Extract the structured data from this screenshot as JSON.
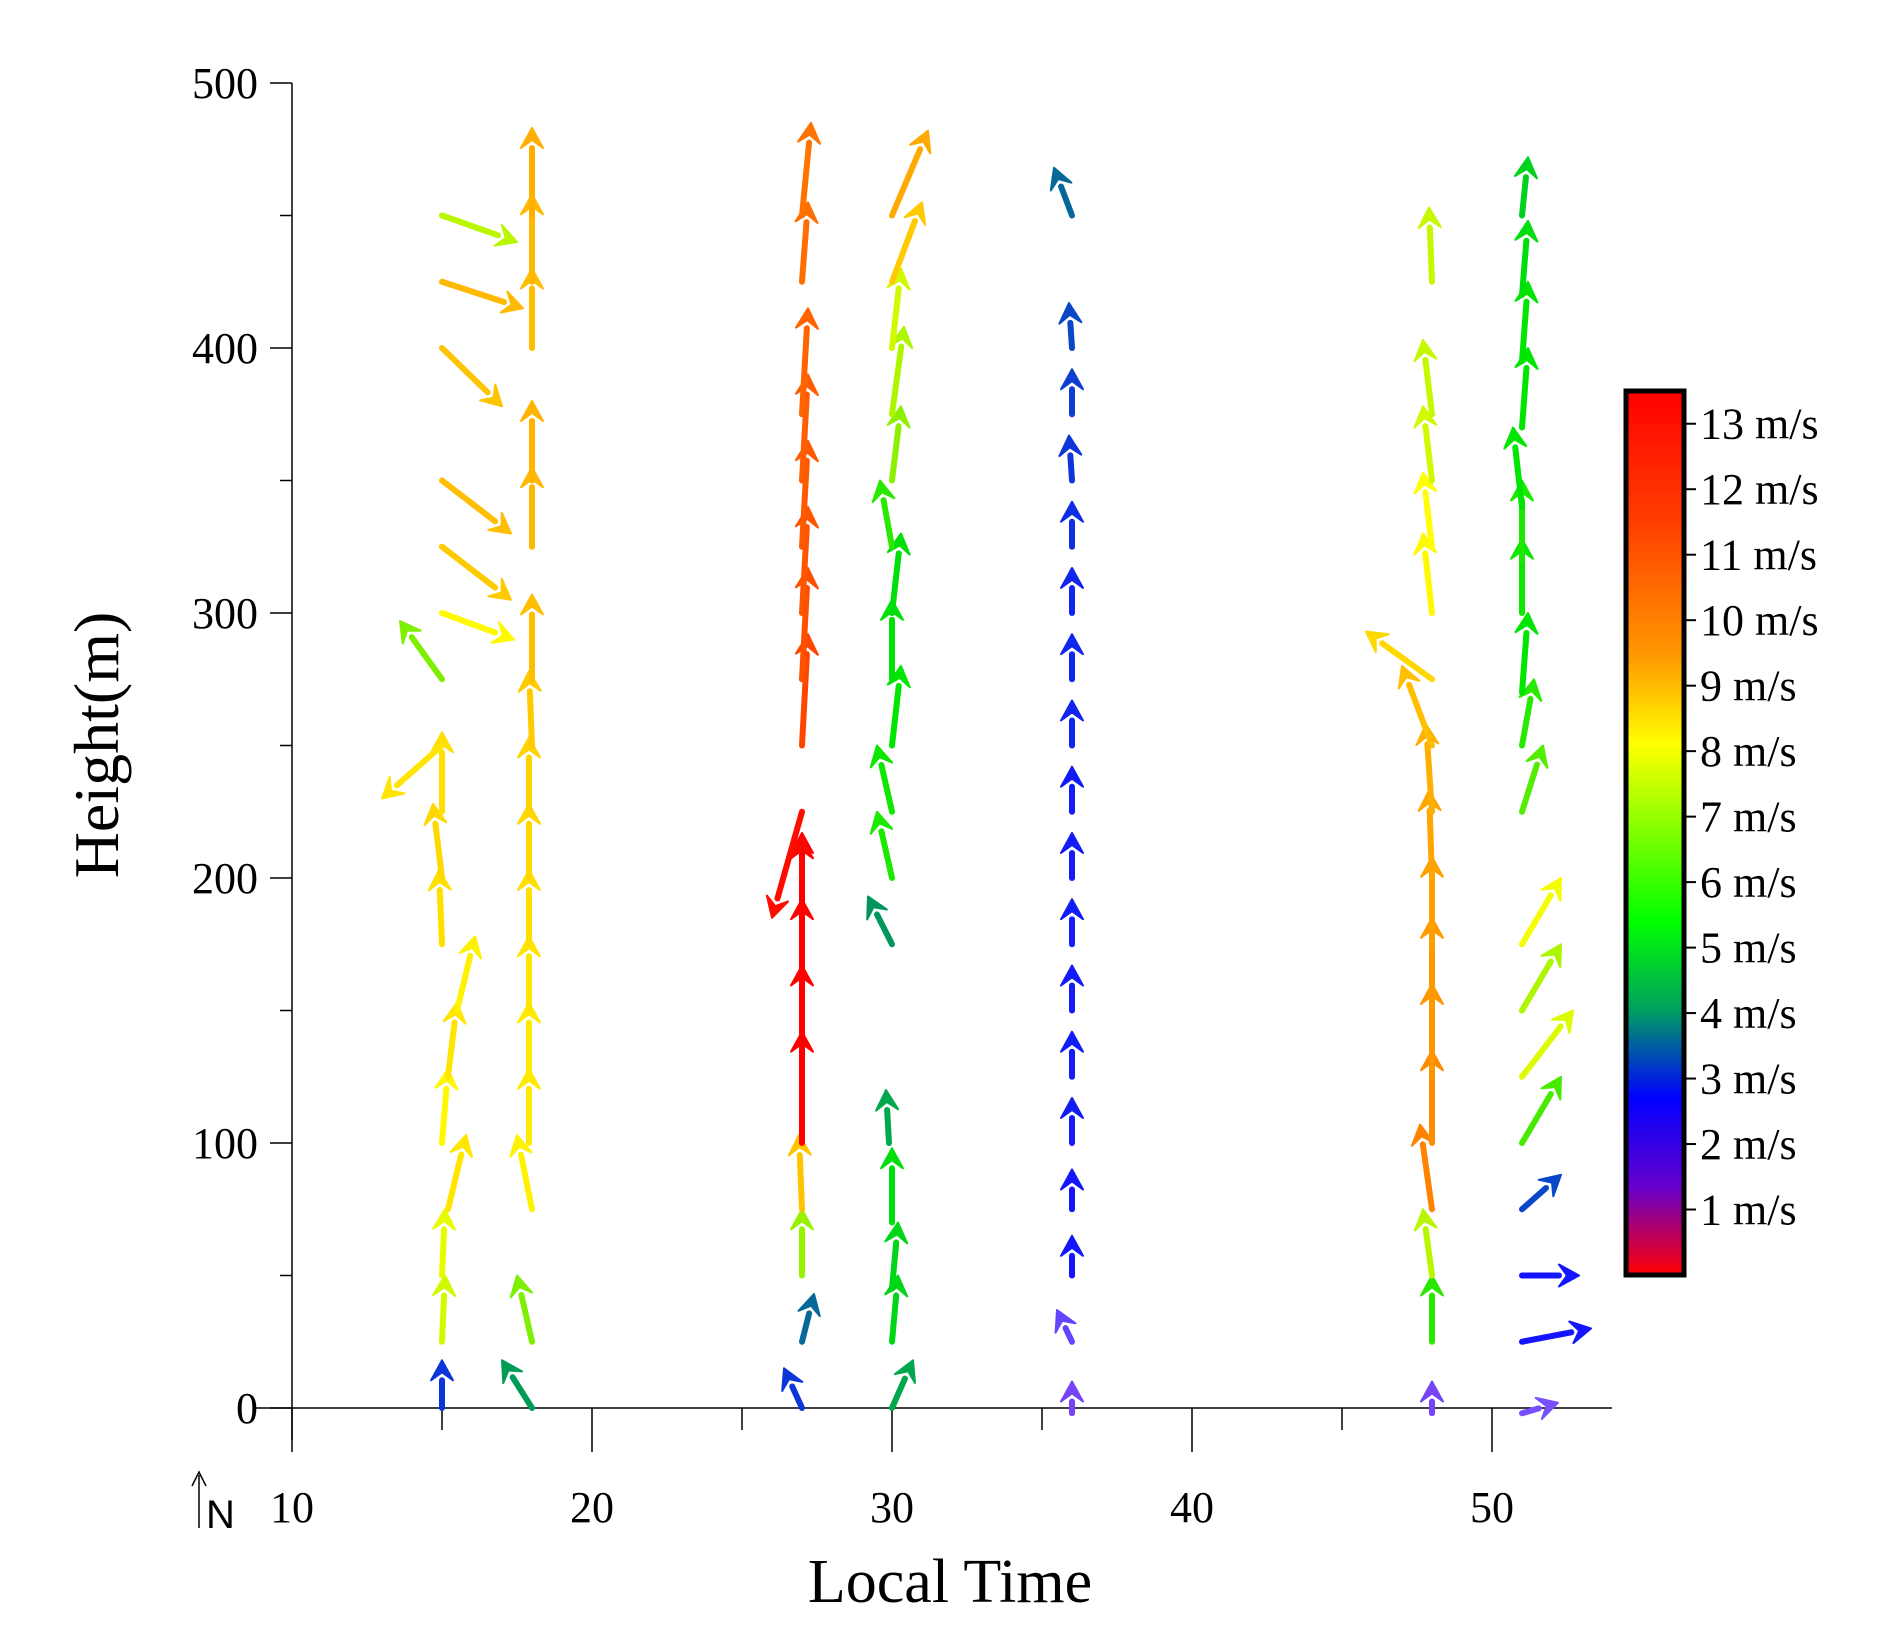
{
  "chart_data": {
    "type": "vector",
    "xlabel": "Local Time",
    "ylabel": "Height(m)",
    "xlim": [
      10,
      54
    ],
    "ylim": [
      -15,
      500
    ],
    "xticks": [
      10,
      20,
      30,
      40,
      50
    ],
    "yticks": [
      0,
      100,
      200,
      300,
      400,
      500
    ],
    "north_indicator": "N",
    "colorbar": {
      "labels": [
        "13 m/s",
        "12 m/s",
        "11 m/s",
        "10 m/s",
        "9 m/s",
        "8 m/s",
        "7 m/s",
        "6 m/s",
        "5 m/s",
        "4 m/s",
        "3 m/s",
        "2 m/s",
        "1 m/s"
      ],
      "min": 0,
      "max": 13.5
    },
    "vectors": [
      {
        "x": 15.0,
        "h": 0,
        "dx": 0.0,
        "dh": 18,
        "speed": 3.4
      },
      {
        "x": 15.0,
        "h": 25,
        "dx": 0.1,
        "dh": 25,
        "speed": 7.6
      },
      {
        "x": 15.0,
        "h": 50,
        "dx": 0.1,
        "dh": 25,
        "speed": 7.8
      },
      {
        "x": 15.2,
        "h": 75,
        "dx": 0.6,
        "dh": 28,
        "speed": 8.4
      },
      {
        "x": 15.0,
        "h": 100,
        "dx": 0.2,
        "dh": 28,
        "speed": 8.1
      },
      {
        "x": 15.2,
        "h": 125,
        "dx": 0.3,
        "dh": 28,
        "speed": 8.4
      },
      {
        "x": 15.5,
        "h": 150,
        "dx": 0.6,
        "dh": 28,
        "speed": 8.2
      },
      {
        "x": 15.0,
        "h": 175,
        "dx": -0.1,
        "dh": 28,
        "speed": 8.5
      },
      {
        "x": 15.0,
        "h": 200,
        "dx": -0.3,
        "dh": 28,
        "speed": 8.6
      },
      {
        "x": 15.0,
        "h": 225,
        "dx": 0.0,
        "dh": 30,
        "speed": 8.5
      },
      {
        "x": 15.0,
        "h": 250,
        "dx": -2.0,
        "dh": -20,
        "speed": 8.4
      },
      {
        "x": 15.0,
        "h": 275,
        "dx": -1.4,
        "dh": 22,
        "speed": 6.9
      },
      {
        "x": 15.0,
        "h": 300,
        "dx": 2.4,
        "dh": -10,
        "speed": 8.1
      },
      {
        "x": 15.0,
        "h": 325,
        "dx": 2.3,
        "dh": -20,
        "speed": 8.8
      },
      {
        "x": 15.0,
        "h": 350,
        "dx": 2.3,
        "dh": -20,
        "speed": 9.0
      },
      {
        "x": 15.0,
        "h": 400,
        "dx": 2.0,
        "dh": -22,
        "speed": 8.9
      },
      {
        "x": 15.0,
        "h": 425,
        "dx": 2.7,
        "dh": -10,
        "speed": 9.1
      },
      {
        "x": 15.0,
        "h": 450,
        "dx": 2.5,
        "dh": -10,
        "speed": 7.4
      },
      {
        "x": 18.0,
        "h": 0,
        "dx": -1.0,
        "dh": 18,
        "speed": 4.4
      },
      {
        "x": 18.0,
        "h": 25,
        "dx": -0.5,
        "dh": 25,
        "speed": 6.9
      },
      {
        "x": 18.0,
        "h": 75,
        "dx": -0.5,
        "dh": 28,
        "speed": 8.2
      },
      {
        "x": 17.9,
        "h": 100,
        "dx": 0.0,
        "dh": 28,
        "speed": 8.3
      },
      {
        "x": 17.9,
        "h": 125,
        "dx": 0.0,
        "dh": 28,
        "speed": 8.3
      },
      {
        "x": 17.9,
        "h": 150,
        "dx": 0.0,
        "dh": 28,
        "speed": 8.4
      },
      {
        "x": 17.9,
        "h": 175,
        "dx": 0.0,
        "dh": 28,
        "speed": 8.5
      },
      {
        "x": 17.9,
        "h": 200,
        "dx": 0.0,
        "dh": 28,
        "speed": 8.6
      },
      {
        "x": 17.9,
        "h": 225,
        "dx": 0.0,
        "dh": 28,
        "speed": 8.7
      },
      {
        "x": 18.0,
        "h": 250,
        "dx": -0.1,
        "dh": 28,
        "speed": 8.8
      },
      {
        "x": 18.0,
        "h": 275,
        "dx": 0.0,
        "dh": 32,
        "speed": 9.0
      },
      {
        "x": 18.0,
        "h": 325,
        "dx": 0.0,
        "dh": 30,
        "speed": 9.1
      },
      {
        "x": 18.0,
        "h": 350,
        "dx": 0.0,
        "dh": 30,
        "speed": 9.2
      },
      {
        "x": 18.0,
        "h": 400,
        "dx": 0.0,
        "dh": 30,
        "speed": 9.0
      },
      {
        "x": 18.0,
        "h": 425,
        "dx": 0.0,
        "dh": 33,
        "speed": 9.1
      },
      {
        "x": 18.0,
        "h": 450,
        "dx": 0.0,
        "dh": 33,
        "speed": 9.3
      },
      {
        "x": 27.0,
        "h": 0,
        "dx": -0.6,
        "dh": 15,
        "speed": 3.4
      },
      {
        "x": 27.0,
        "h": 25,
        "dx": 0.4,
        "dh": 18,
        "speed": 3.9
      },
      {
        "x": 27.0,
        "h": 50,
        "dx": 0.0,
        "dh": 25,
        "speed": 7.1
      },
      {
        "x": 27.0,
        "h": 75,
        "dx": -0.1,
        "dh": 28,
        "speed": 8.9
      },
      {
        "x": 27.0,
        "h": 100,
        "dx": 0.0,
        "dh": 42,
        "speed": 13.2
      },
      {
        "x": 27.0,
        "h": 125,
        "dx": 0.0,
        "dh": 42,
        "speed": 13.2
      },
      {
        "x": 27.0,
        "h": 150,
        "dx": 0.0,
        "dh": 42,
        "speed": 13.1
      },
      {
        "x": 27.0,
        "h": 175,
        "dx": 0.0,
        "dh": 42,
        "speed": 13.0
      },
      {
        "x": 27.0,
        "h": 200,
        "dx": 0.0,
        "dh": 15,
        "speed": 12.9
      },
      {
        "x": 27.0,
        "h": 225,
        "dx": -1.0,
        "dh": -40,
        "speed": 12.8
      },
      {
        "x": 27.0,
        "h": 250,
        "dx": 0.2,
        "dh": 42,
        "speed": 11.8
      },
      {
        "x": 27.0,
        "h": 275,
        "dx": 0.2,
        "dh": 42,
        "speed": 11.6
      },
      {
        "x": 27.0,
        "h": 300,
        "dx": 0.2,
        "dh": 40,
        "speed": 11.5
      },
      {
        "x": 27.0,
        "h": 325,
        "dx": 0.2,
        "dh": 40,
        "speed": 11.4
      },
      {
        "x": 27.0,
        "h": 350,
        "dx": 0.2,
        "dh": 40,
        "speed": 11.3
      },
      {
        "x": 27.0,
        "h": 375,
        "dx": 0.2,
        "dh": 40,
        "speed": 11.2
      },
      {
        "x": 27.0,
        "h": 425,
        "dx": 0.2,
        "dh": 30,
        "speed": 11.0
      },
      {
        "x": 27.0,
        "h": 450,
        "dx": 0.3,
        "dh": 35,
        "speed": 10.8
      },
      {
        "x": 30.0,
        "h": 0,
        "dx": 0.7,
        "dh": 18,
        "speed": 4.6
      },
      {
        "x": 30.0,
        "h": 25,
        "dx": 0.2,
        "dh": 25,
        "speed": 5.6
      },
      {
        "x": 30.0,
        "h": 45,
        "dx": 0.2,
        "dh": 25,
        "speed": 5.6
      },
      {
        "x": 30.0,
        "h": 70,
        "dx": 0.0,
        "dh": 28,
        "speed": 5.8
      },
      {
        "x": 29.9,
        "h": 100,
        "dx": -0.1,
        "dh": 20,
        "speed": 4.6
      },
      {
        "x": 30.0,
        "h": 175,
        "dx": -0.8,
        "dh": 18,
        "speed": 4.3
      },
      {
        "x": 30.0,
        "h": 200,
        "dx": -0.5,
        "dh": 25,
        "speed": 6.2
      },
      {
        "x": 30.0,
        "h": 225,
        "dx": -0.5,
        "dh": 25,
        "speed": 6.1
      },
      {
        "x": 30.0,
        "h": 250,
        "dx": 0.3,
        "dh": 30,
        "speed": 6.0
      },
      {
        "x": 30.0,
        "h": 275,
        "dx": 0.0,
        "dh": 30,
        "speed": 5.9
      },
      {
        "x": 30.0,
        "h": 300,
        "dx": 0.3,
        "dh": 30,
        "speed": 5.8
      },
      {
        "x": 30.0,
        "h": 325,
        "dx": -0.4,
        "dh": 25,
        "speed": 6.3
      },
      {
        "x": 30.0,
        "h": 350,
        "dx": 0.3,
        "dh": 28,
        "speed": 7.0
      },
      {
        "x": 30.0,
        "h": 375,
        "dx": 0.4,
        "dh": 33,
        "speed": 7.3
      },
      {
        "x": 30.0,
        "h": 400,
        "dx": 0.3,
        "dh": 30,
        "speed": 7.6
      },
      {
        "x": 30.0,
        "h": 425,
        "dx": 1.0,
        "dh": 30,
        "speed": 8.8
      },
      {
        "x": 30.0,
        "h": 450,
        "dx": 1.2,
        "dh": 32,
        "speed": 9.4
      },
      {
        "x": 36.0,
        "h": -2,
        "dx": 0.0,
        "dh": 12,
        "speed": 2.3
      },
      {
        "x": 36.0,
        "h": 25,
        "dx": -0.5,
        "dh": 12,
        "speed": 2.6
      },
      {
        "x": 36.0,
        "h": 50,
        "dx": 0.0,
        "dh": 15,
        "speed": 3.0
      },
      {
        "x": 36.0,
        "h": 75,
        "dx": 0.0,
        "dh": 15,
        "speed": 3.0
      },
      {
        "x": 36.0,
        "h": 100,
        "dx": 0.0,
        "dh": 17,
        "speed": 3.1
      },
      {
        "x": 36.0,
        "h": 125,
        "dx": 0.0,
        "dh": 17,
        "speed": 3.1
      },
      {
        "x": 36.0,
        "h": 150,
        "dx": 0.0,
        "dh": 17,
        "speed": 3.1
      },
      {
        "x": 36.0,
        "h": 175,
        "dx": 0.0,
        "dh": 17,
        "speed": 3.1
      },
      {
        "x": 36.0,
        "h": 200,
        "dx": 0.0,
        "dh": 17,
        "speed": 3.1
      },
      {
        "x": 36.0,
        "h": 225,
        "dx": 0.0,
        "dh": 17,
        "speed": 3.1
      },
      {
        "x": 36.0,
        "h": 250,
        "dx": 0.0,
        "dh": 17,
        "speed": 3.2
      },
      {
        "x": 36.0,
        "h": 275,
        "dx": 0.0,
        "dh": 17,
        "speed": 3.2
      },
      {
        "x": 36.0,
        "h": 300,
        "dx": 0.0,
        "dh": 17,
        "speed": 3.2
      },
      {
        "x": 36.0,
        "h": 325,
        "dx": 0.0,
        "dh": 17,
        "speed": 3.3
      },
      {
        "x": 36.0,
        "h": 350,
        "dx": -0.1,
        "dh": 17,
        "speed": 3.4
      },
      {
        "x": 36.0,
        "h": 375,
        "dx": 0.0,
        "dh": 17,
        "speed": 3.5
      },
      {
        "x": 36.0,
        "h": 400,
        "dx": -0.1,
        "dh": 17,
        "speed": 3.6
      },
      {
        "x": 36.0,
        "h": 450,
        "dx": -0.6,
        "dh": 18,
        "speed": 3.9
      },
      {
        "x": 48.0,
        "h": -2,
        "dx": 0.0,
        "dh": 12,
        "speed": 2.3
      },
      {
        "x": 48.0,
        "h": 25,
        "dx": 0.0,
        "dh": 25,
        "speed": 6.3
      },
      {
        "x": 48.0,
        "h": 50,
        "dx": -0.3,
        "dh": 25,
        "speed": 7.4
      },
      {
        "x": 48.0,
        "h": 75,
        "dx": -0.4,
        "dh": 32,
        "speed": 10.3
      },
      {
        "x": 48.0,
        "h": 100,
        "dx": 0.0,
        "dh": 35,
        "speed": 10.0
      },
      {
        "x": 48.0,
        "h": 125,
        "dx": 0.0,
        "dh": 35,
        "speed": 9.8
      },
      {
        "x": 48.0,
        "h": 150,
        "dx": 0.0,
        "dh": 35,
        "speed": 9.7
      },
      {
        "x": 48.0,
        "h": 175,
        "dx": 0.0,
        "dh": 33,
        "speed": 9.6
      },
      {
        "x": 48.0,
        "h": 200,
        "dx": -0.1,
        "dh": 33,
        "speed": 9.5
      },
      {
        "x": 48.0,
        "h": 225,
        "dx": -0.2,
        "dh": 33,
        "speed": 9.3
      },
      {
        "x": 48.0,
        "h": 250,
        "dx": -1.0,
        "dh": 30,
        "speed": 9.0
      },
      {
        "x": 48.0,
        "h": 275,
        "dx": -2.2,
        "dh": 18,
        "speed": 8.6
      },
      {
        "x": 48.0,
        "h": 300,
        "dx": -0.3,
        "dh": 30,
        "speed": 8.1
      },
      {
        "x": 48.0,
        "h": 325,
        "dx": -0.3,
        "dh": 28,
        "speed": 8.0
      },
      {
        "x": 48.0,
        "h": 350,
        "dx": -0.3,
        "dh": 28,
        "speed": 7.6
      },
      {
        "x": 48.0,
        "h": 375,
        "dx": -0.3,
        "dh": 28,
        "speed": 7.5
      },
      {
        "x": 48.0,
        "h": 425,
        "dx": -0.1,
        "dh": 28,
        "speed": 7.5
      },
      {
        "x": 51.0,
        "h": -2,
        "dx": 1.2,
        "dh": 4,
        "speed": 2.5
      },
      {
        "x": 51.0,
        "h": 25,
        "dx": 2.3,
        "dh": 5,
        "speed": 3.0
      },
      {
        "x": 51.0,
        "h": 50,
        "dx": 1.9,
        "dh": 0,
        "speed": 3.0
      },
      {
        "x": 51.0,
        "h": 75,
        "dx": 1.3,
        "dh": 13,
        "speed": 3.6
      },
      {
        "x": 51.0,
        "h": 100,
        "dx": 1.3,
        "dh": 25,
        "speed": 6.5
      },
      {
        "x": 51.0,
        "h": 125,
        "dx": 1.7,
        "dh": 25,
        "speed": 7.7
      },
      {
        "x": 51.0,
        "h": 150,
        "dx": 1.3,
        "dh": 25,
        "speed": 7.3
      },
      {
        "x": 51.0,
        "h": 175,
        "dx": 1.3,
        "dh": 25,
        "speed": 7.9
      },
      {
        "x": 51.0,
        "h": 225,
        "dx": 0.7,
        "dh": 25,
        "speed": 6.6
      },
      {
        "x": 51.0,
        "h": 250,
        "dx": 0.4,
        "dh": 25,
        "speed": 6.3
      },
      {
        "x": 51.0,
        "h": 270,
        "dx": 0.2,
        "dh": 30,
        "speed": 6.0
      },
      {
        "x": 51.0,
        "h": 300,
        "dx": 0.0,
        "dh": 28,
        "speed": 6.1
      },
      {
        "x": 51.0,
        "h": 320,
        "dx": 0.0,
        "dh": 30,
        "speed": 6.2
      },
      {
        "x": 51.0,
        "h": 340,
        "dx": -0.3,
        "dh": 30,
        "speed": 6.0
      },
      {
        "x": 51.0,
        "h": 370,
        "dx": 0.2,
        "dh": 30,
        "speed": 6.0
      },
      {
        "x": 51.0,
        "h": 395,
        "dx": 0.2,
        "dh": 30,
        "speed": 6.0
      },
      {
        "x": 51.0,
        "h": 420,
        "dx": 0.2,
        "dh": 28,
        "speed": 5.8
      },
      {
        "x": 51.0,
        "h": 450,
        "dx": 0.2,
        "dh": 22,
        "speed": 5.5
      }
    ]
  }
}
